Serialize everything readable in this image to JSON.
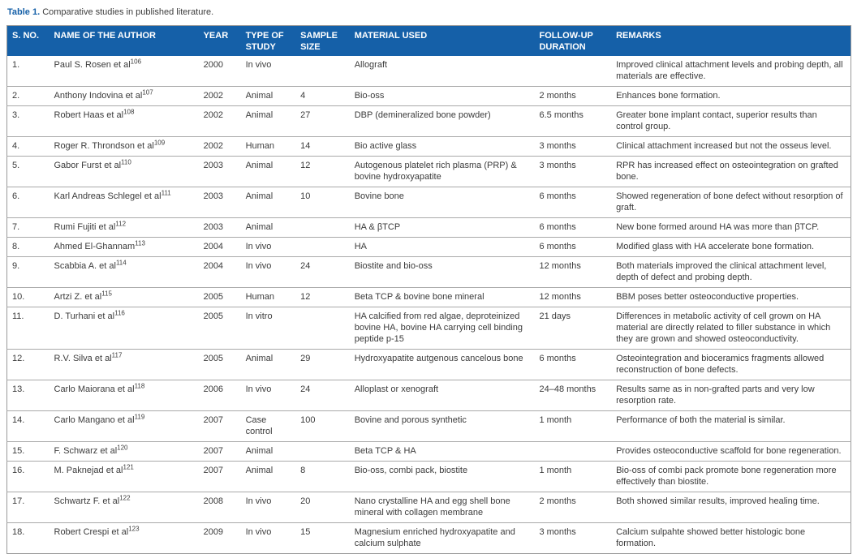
{
  "caption": {
    "label": "Table 1.",
    "text": " Comparative studies in published literature."
  },
  "colors": {
    "header_bg": "#1560a8",
    "header_text": "#ffffff",
    "body_text": "#3b3b3b",
    "border": "#999999"
  },
  "table": {
    "columns": [
      {
        "key": "sno",
        "label": "S. NO."
      },
      {
        "key": "author",
        "label": "NAME OF THE AUTHOR"
      },
      {
        "key": "year",
        "label": "YEAR"
      },
      {
        "key": "type",
        "label": "TYPE OF STUDY"
      },
      {
        "key": "sample",
        "label": "SAMPLE SIZE"
      },
      {
        "key": "material",
        "label": "MATERIAL USED"
      },
      {
        "key": "followup",
        "label": "FOLLOW-UP DURATION"
      },
      {
        "key": "remarks",
        "label": "REMARKS"
      }
    ],
    "rows": [
      {
        "sno": "1.",
        "author": "Paul S. Rosen et al",
        "ref": "106",
        "year": "2000",
        "type": "In vivo",
        "sample": "",
        "material": "Allograft",
        "followup": "",
        "remarks": "Improved clinical attachment levels and probing depth, all materials are effective."
      },
      {
        "sno": "2.",
        "author": "Anthony Indovina et al",
        "ref": "107",
        "year": "2002",
        "type": "Animal",
        "sample": "4",
        "material": "Bio-oss",
        "followup": "2 months",
        "remarks": "Enhances bone formation."
      },
      {
        "sno": "3.",
        "author": "Robert Haas et al",
        "ref": "108",
        "year": "2002",
        "type": "Animal",
        "sample": "27",
        "material": "DBP (demineralized bone powder)",
        "followup": "6.5 months",
        "remarks": "Greater bone implant contact, superior results than control group."
      },
      {
        "sno": "4.",
        "author": "Roger R. Throndson et al",
        "ref": "109",
        "year": "2002",
        "type": "Human",
        "sample": "14",
        "material": "Bio active glass",
        "followup": "3 months",
        "remarks": "Clinical attachment increased but not the osseus level."
      },
      {
        "sno": "5.",
        "author": "Gabor Furst et al",
        "ref": "110",
        "year": "2003",
        "type": "Animal",
        "sample": "12",
        "material": "Autogenous platelet rich plasma (PRP) & bovine hydroxyapatite",
        "followup": "3 months",
        "remarks": "RPR has increased effect on osteointegration on grafted bone."
      },
      {
        "sno": "6.",
        "author": "Karl Andreas Schlegel et al",
        "ref": "111",
        "year": "2003",
        "type": "Animal",
        "sample": "10",
        "material": "Bovine bone",
        "followup": "6 months",
        "remarks": "Showed regeneration of bone defect without resorption of graft."
      },
      {
        "sno": "7.",
        "author": "Rumi Fujiti et al",
        "ref": "112",
        "year": "2003",
        "type": "Animal",
        "sample": "",
        "material": "HA & βTCP",
        "followup": "6 months",
        "remarks": "New bone formed around HA was more than βTCP."
      },
      {
        "sno": "8.",
        "author": "Ahmed El-Ghannam",
        "ref": "113",
        "year": "2004",
        "type": "In vivo",
        "sample": "",
        "material": "HA",
        "followup": "6 months",
        "remarks": "Modified glass with HA accelerate bone formation."
      },
      {
        "sno": "9.",
        "author": "Scabbia A. et al",
        "ref": "114",
        "year": "2004",
        "type": "In vivo",
        "sample": "24",
        "material": "Biostite and bio-oss",
        "followup": "12 months",
        "remarks": "Both materials improved the clinical attachment level, depth of defect and probing depth."
      },
      {
        "sno": "10.",
        "author": "Artzi Z. et al",
        "ref": "115",
        "year": "2005",
        "type": "Human",
        "sample": "12",
        "material": "Beta TCP & bovine bone mineral",
        "followup": "12 months",
        "remarks": "BBM poses better osteoconductive properties."
      },
      {
        "sno": "11.",
        "author": "D. Turhani et al",
        "ref": "116",
        "year": "2005",
        "type": "In vitro",
        "sample": "",
        "material": "HA calcified from red algae, deproteinized bovine HA, bovine HA carrying cell binding peptide p-15",
        "followup": "21 days",
        "remarks": "Differences in metabolic activity of cell grown on HA material are directly related to filler substance in which they are grown and showed osteoconductivity."
      },
      {
        "sno": "12.",
        "author": "R.V. Silva et al",
        "ref": "117",
        "year": "2005",
        "type": "Animal",
        "sample": "29",
        "material": "Hydroxyapatite autgenous cancelous bone",
        "followup": "6 months",
        "remarks": "Osteointegration and bioceramics fragments allowed reconstruction of bone defects."
      },
      {
        "sno": "13.",
        "author": "Carlo Maiorana et al",
        "ref": "118",
        "year": "2006",
        "type": "In vivo",
        "sample": "24",
        "material": "Alloplast or xenograft",
        "followup": "24–48 months",
        "remarks": "Results same as in non-grafted parts and very low resorption rate."
      },
      {
        "sno": "14.",
        "author": "Carlo Mangano et al",
        "ref": "119",
        "year": "2007",
        "type": "Case control",
        "sample": "100",
        "material": "Bovine and porous synthetic",
        "followup": "1 month",
        "remarks": "Performance of both the material is similar."
      },
      {
        "sno": "15.",
        "author": "F. Schwarz et al",
        "ref": "120",
        "year": "2007",
        "type": "Animal",
        "sample": "",
        "material": "Beta TCP & HA",
        "followup": "",
        "remarks": "Provides osteoconductive scaffold for bone regeneration."
      },
      {
        "sno": "16.",
        "author": "M. Paknejad et al",
        "ref": "121",
        "year": "2007",
        "type": "Animal",
        "sample": "8",
        "material": "Bio-oss, combi pack, biostite",
        "followup": "1 month",
        "remarks": "Bio-oss of combi pack promote bone regeneration more effectively than biostite."
      },
      {
        "sno": "17.",
        "author": "Schwartz F. et al",
        "ref": "122",
        "year": "2008",
        "type": "In vivo",
        "sample": "20",
        "material": "Nano crystalline HA and egg shell bone mineral with collagen membrane",
        "followup": "2 months",
        "remarks": "Both showed similar results, improved healing time."
      },
      {
        "sno": "18.",
        "author": "Robert Crespi et al",
        "ref": "123",
        "year": "2009",
        "type": "In vivo",
        "sample": "15",
        "material": "Magnesium enriched hydroxyapatite and calcium sulphate",
        "followup": "3 months",
        "remarks": "Calcium sulpahte showed better histologic bone formation."
      }
    ]
  }
}
